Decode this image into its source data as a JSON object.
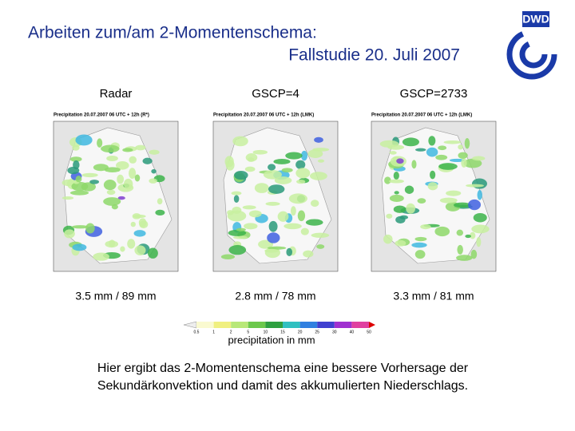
{
  "header": {
    "title_line1": "Arbeiten zum/am 2-Momentenschema:",
    "title_line2": "Fallstudie 20. Juli 2007",
    "logo": "DWD"
  },
  "panels": [
    {
      "label": "Radar",
      "map_title": "Precipitation 20.07.2007 06 UTC + 12h (R*)",
      "stats": "3.5 mm / 89 mm"
    },
    {
      "label": "GSCP=4",
      "map_title": "Precipitation 20.07.2007 06 UTC + 12h (LMK)",
      "stats": "2.8 mm / 78 mm"
    },
    {
      "label": "GSCP=2733",
      "map_title": "Precipitation 20.07.2007 06 UTC + 12h (LMK)",
      "stats": "3.3 mm / 81 mm"
    }
  ],
  "colorbar": {
    "ticks": [
      "0.5",
      "1",
      "2",
      "5",
      "10",
      "15",
      "20",
      "25",
      "30",
      "40",
      "50"
    ],
    "caption": "precipitation in mm"
  },
  "footer": {
    "lines": [
      "Hier ergibt das 2-Momentenschema eine bessere Vorhersage der",
      "Sekundärkonvektion und damit des akkumulierten Niederschlags."
    ]
  }
}
